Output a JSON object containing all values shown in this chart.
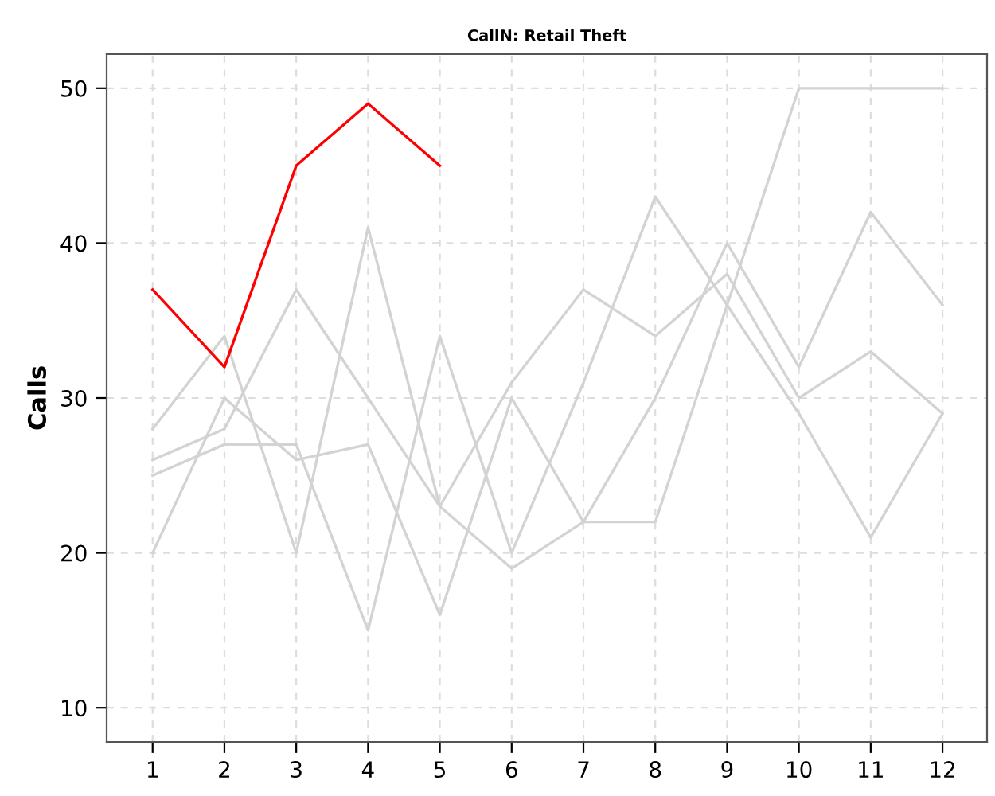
{
  "chart_data": {
    "type": "line",
    "title": "CallN: Retail Theft",
    "ylabel": "Calls",
    "x": [
      1,
      2,
      3,
      4,
      5,
      6,
      7,
      8,
      9,
      10,
      11,
      12
    ],
    "series": [
      {
        "color": "#d3d3d3",
        "values": [
          28,
          34,
          20,
          41,
          23,
          31,
          37,
          34,
          38,
          30,
          33,
          29
        ]
      },
      {
        "color": "#d3d3d3",
        "values": [
          20,
          30,
          26,
          27,
          16,
          30,
          22,
          30,
          40,
          32,
          42,
          36
        ]
      },
      {
        "color": "#d3d3d3",
        "values": [
          26,
          28,
          37,
          30,
          23,
          19,
          22,
          22,
          36,
          50,
          50,
          50
        ]
      },
      {
        "color": "#d3d3d3",
        "values": [
          25,
          27,
          27,
          15,
          34,
          20,
          31,
          43,
          36,
          29,
          21,
          29
        ]
      },
      {
        "color": "#ff0000",
        "values": [
          37,
          32,
          45,
          49,
          45,
          null,
          null,
          null,
          null,
          null,
          null,
          null
        ]
      }
    ],
    "xlim": [
      0.36,
      12.62
    ],
    "xticks": [
      1,
      2,
      3,
      4,
      5,
      6,
      7,
      8,
      9,
      10,
      11,
      12
    ],
    "ylim": [
      7.8,
      52.2
    ],
    "yticks": [
      10,
      20,
      30,
      40,
      50
    ],
    "grid": true,
    "line_style": "solid",
    "marker": "none"
  }
}
